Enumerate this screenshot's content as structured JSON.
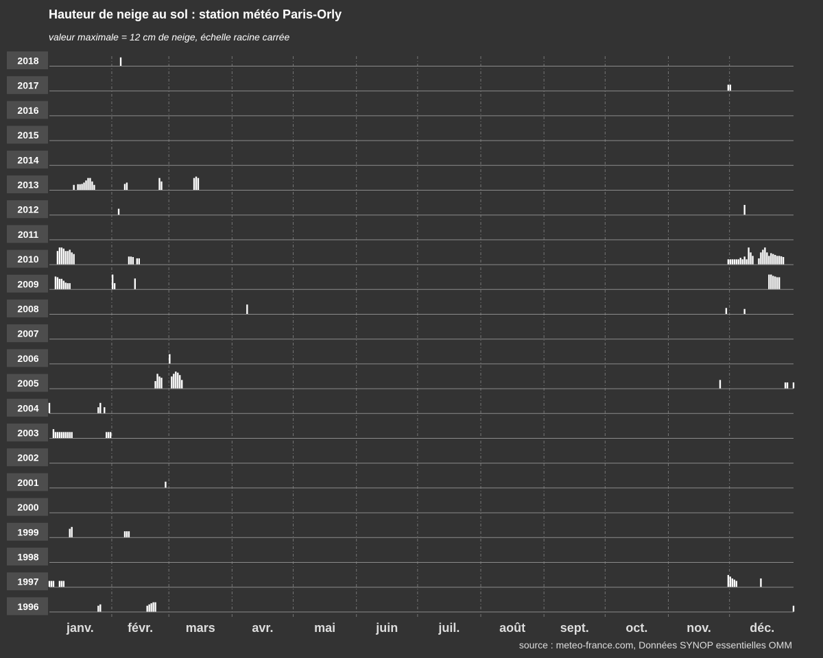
{
  "title": "Hauteur de neige au sol : station météo Paris-Orly",
  "subtitle": "valeur maximale = 12 cm de neige, échelle racine carrée",
  "caption": "source : meteo-france.com, Données SYNOP essentielles OMM",
  "colors": {
    "background": "#333333",
    "bar": "#ffffff",
    "baseline": "#8c8c8c",
    "month_divider": "#777777",
    "strip": "#4d4d4d"
  },
  "chart_data": {
    "type": "bar",
    "title": "Hauteur de neige au sol : station météo Paris-Orly",
    "subtitle": "valeur maximale = 12 cm de neige, échelle racine carrée",
    "y_scale": "sqrt",
    "ylim": [
      0,
      12
    ],
    "units": "cm",
    "x_axis": "day of year",
    "xlim": [
      1,
      366
    ],
    "months": [
      "janv.",
      "févr.",
      "mars",
      "avr.",
      "mai",
      "juin",
      "juil.",
      "août",
      "sept.",
      "oct.",
      "nov.",
      "déc."
    ],
    "month_start_days": [
      1,
      32,
      60,
      91,
      121,
      152,
      182,
      213,
      244,
      274,
      305,
      335
    ],
    "series": [
      {
        "name": "2018",
        "points": [
          [
            36,
            2
          ]
        ]
      },
      {
        "name": "2017",
        "points": [
          [
            334,
            1
          ],
          [
            335,
            1
          ]
        ]
      },
      {
        "name": "2016",
        "points": []
      },
      {
        "name": "2015",
        "points": []
      },
      {
        "name": "2014",
        "points": []
      },
      {
        "name": "2013",
        "points": [
          [
            13,
            0.7
          ],
          [
            15,
            0.9
          ],
          [
            16,
            0.9
          ],
          [
            17,
            1
          ],
          [
            18,
            1.5
          ],
          [
            19,
            2.5
          ],
          [
            20,
            4
          ],
          [
            21,
            4
          ],
          [
            22,
            2
          ],
          [
            23,
            0.7
          ],
          [
            38,
            1
          ],
          [
            39,
            1.5
          ],
          [
            55,
            4
          ],
          [
            56,
            2
          ],
          [
            72,
            4
          ],
          [
            73,
            5
          ],
          [
            74,
            4
          ]
        ]
      },
      {
        "name": "2012",
        "points": [
          [
            35,
            1
          ],
          [
            342,
            2.7
          ]
        ]
      },
      {
        "name": "2011",
        "points": []
      },
      {
        "name": "2010",
        "points": [
          [
            5,
            5
          ],
          [
            6,
            8
          ],
          [
            7,
            8
          ],
          [
            8,
            7
          ],
          [
            9,
            5
          ],
          [
            10,
            5
          ],
          [
            11,
            6
          ],
          [
            12,
            4
          ],
          [
            13,
            3
          ],
          [
            40,
            1.7
          ],
          [
            41,
            1.7
          ],
          [
            42,
            1.5
          ],
          [
            44,
            1
          ],
          [
            45,
            1
          ],
          [
            334,
            0.7
          ],
          [
            335,
            0.7
          ],
          [
            336,
            0.7
          ],
          [
            337,
            0.7
          ],
          [
            338,
            0.7
          ],
          [
            339,
            0.7
          ],
          [
            340,
            1.2
          ],
          [
            341,
            0.7
          ],
          [
            342,
            1.7
          ],
          [
            343,
            0.7
          ],
          [
            344,
            8
          ],
          [
            345,
            4
          ],
          [
            346,
            2
          ],
          [
            349,
            1
          ],
          [
            350,
            4
          ],
          [
            351,
            6
          ],
          [
            352,
            8
          ],
          [
            353,
            4
          ],
          [
            354,
            2
          ],
          [
            355,
            3.5
          ],
          [
            356,
            3
          ],
          [
            357,
            2.5
          ],
          [
            358,
            2
          ],
          [
            359,
            2
          ],
          [
            360,
            1.8
          ],
          [
            361,
            1.5
          ]
        ]
      },
      {
        "name": "2009",
        "points": [
          [
            4,
            4.5
          ],
          [
            5,
            4
          ],
          [
            6,
            3
          ],
          [
            7,
            3
          ],
          [
            8,
            2
          ],
          [
            9,
            1.2
          ],
          [
            10,
            1
          ],
          [
            11,
            1
          ],
          [
            32,
            6
          ],
          [
            33,
            1
          ],
          [
            43,
            3.2
          ],
          [
            354,
            6
          ],
          [
            355,
            6
          ],
          [
            356,
            5
          ],
          [
            357,
            4.5
          ],
          [
            358,
            4
          ],
          [
            359,
            4
          ]
        ]
      },
      {
        "name": "2008",
        "points": [
          [
            98,
            2.5
          ],
          [
            333,
            1
          ],
          [
            342,
            0.7
          ]
        ]
      },
      {
        "name": "2007",
        "points": []
      },
      {
        "name": "2006",
        "points": [
          [
            60,
            2.5
          ]
        ]
      },
      {
        "name": "2005",
        "points": [
          [
            53,
            1.5
          ],
          [
            54,
            6
          ],
          [
            55,
            4
          ],
          [
            56,
            3.2
          ],
          [
            61,
            4
          ],
          [
            62,
            6
          ],
          [
            63,
            8
          ],
          [
            64,
            7
          ],
          [
            65,
            5
          ],
          [
            66,
            2
          ],
          [
            330,
            2
          ],
          [
            362,
            1
          ],
          [
            363,
            1
          ],
          [
            366,
            1
          ]
        ]
      },
      {
        "name": "2004",
        "points": [
          [
            1,
            3
          ],
          [
            25,
            1
          ],
          [
            26,
            3
          ],
          [
            28,
            1
          ]
        ]
      },
      {
        "name": "2003",
        "points": [
          [
            3,
            2.2
          ],
          [
            4,
            1
          ],
          [
            5,
            1
          ],
          [
            6,
            1
          ],
          [
            7,
            1
          ],
          [
            8,
            1
          ],
          [
            9,
            1
          ],
          [
            10,
            1
          ],
          [
            11,
            1
          ],
          [
            12,
            1
          ],
          [
            29,
            1
          ],
          [
            30,
            1
          ],
          [
            31,
            1
          ]
        ]
      },
      {
        "name": "2002",
        "points": []
      },
      {
        "name": "2001",
        "points": [
          [
            58,
            1
          ]
        ]
      },
      {
        "name": "2000",
        "points": []
      },
      {
        "name": "1999",
        "points": [
          [
            11,
            2
          ],
          [
            12,
            3
          ],
          [
            38,
            1
          ],
          [
            39,
            1
          ],
          [
            40,
            1
          ]
        ]
      },
      {
        "name": "1998",
        "points": []
      },
      {
        "name": "1997",
        "points": [
          [
            1,
            1
          ],
          [
            2,
            1
          ],
          [
            3,
            1
          ],
          [
            6,
            1
          ],
          [
            7,
            1
          ],
          [
            8,
            1
          ],
          [
            334,
            4
          ],
          [
            335,
            3
          ],
          [
            336,
            2
          ],
          [
            337,
            1.5
          ],
          [
            338,
            1
          ],
          [
            350,
            2
          ]
        ]
      },
      {
        "name": "1996",
        "points": [
          [
            25,
            1
          ],
          [
            26,
            1.5
          ],
          [
            49,
            1
          ],
          [
            50,
            1.5
          ],
          [
            51,
            2
          ],
          [
            52,
            2.5
          ],
          [
            53,
            2.5
          ],
          [
            366,
            1
          ]
        ]
      }
    ]
  }
}
